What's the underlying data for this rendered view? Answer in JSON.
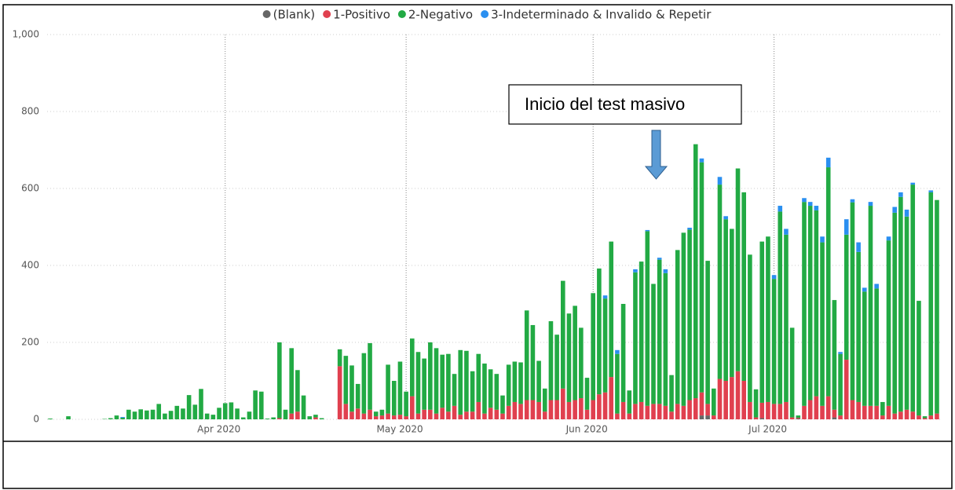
{
  "chart_data": {
    "type": "stacked_bar",
    "annotation": "Inicio del test masivo",
    "categories": [
      null,
      null,
      null,
      null,
      null,
      null,
      null,
      null,
      null,
      null,
      null,
      null,
      null,
      null,
      null,
      null,
      null,
      null,
      null,
      null,
      null,
      null,
      null,
      null,
      null,
      null,
      null,
      null,
      null,
      "Apr 2020",
      null,
      null,
      null,
      null,
      null,
      null,
      null,
      null,
      null,
      null,
      null,
      null,
      null,
      null,
      null,
      null,
      null,
      null,
      null,
      null,
      null,
      null,
      null,
      null,
      null,
      null,
      null,
      null,
      null,
      "May 2020",
      null,
      null,
      null,
      null,
      null,
      null,
      null,
      null,
      null,
      null,
      null,
      null,
      null,
      null,
      null,
      null,
      null,
      null,
      null,
      null,
      null,
      null,
      null,
      null,
      null,
      null,
      null,
      null,
      null,
      null,
      "Jun 2020",
      null,
      null,
      null,
      null,
      null,
      null,
      null,
      null,
      null,
      null,
      null,
      null,
      null,
      null,
      null,
      null,
      null,
      null,
      null,
      null,
      null,
      null,
      null,
      null,
      null,
      null,
      null,
      null,
      null,
      "Jul 2020",
      null,
      null,
      null,
      null,
      null,
      null,
      null,
      null,
      null,
      null,
      null,
      null,
      null,
      null,
      null,
      null,
      null,
      null,
      null,
      null,
      null,
      null,
      null,
      null,
      null,
      null,
      null
    ],
    "series": [
      {
        "name": "(Blank)",
        "color": "#666666",
        "values": [
          0,
          0,
          0,
          0,
          0,
          0,
          0,
          0,
          0,
          0,
          0,
          0,
          0,
          0,
          0,
          0,
          0,
          0,
          0,
          0,
          0,
          0,
          0,
          0,
          0,
          0,
          0,
          0,
          0,
          0,
          0,
          0,
          0,
          0,
          0,
          0,
          0,
          0,
          0,
          0,
          0,
          0,
          0,
          0,
          0,
          0,
          0,
          0,
          0,
          0,
          0,
          0,
          0,
          0,
          0,
          0,
          0,
          0,
          0,
          0,
          0,
          0,
          0,
          0,
          0,
          0,
          0,
          0,
          0,
          0,
          0,
          0,
          0,
          0,
          0,
          0,
          0,
          0,
          0,
          0,
          0,
          0,
          0,
          0,
          0,
          0,
          0,
          0,
          0,
          0,
          0,
          0,
          0,
          0,
          0,
          0,
          0,
          0,
          0,
          0,
          0,
          0,
          0,
          0,
          0,
          0,
          0,
          0,
          10,
          10,
          0,
          0,
          0,
          0,
          0,
          0,
          0,
          0,
          3,
          0,
          0,
          0,
          0,
          0,
          2,
          0,
          0,
          0,
          0,
          0,
          5,
          0,
          0,
          0,
          0,
          0,
          0,
          0,
          0,
          0,
          0,
          0,
          0,
          0,
          0,
          0,
          0,
          0
        ]
      },
      {
        "name": "1-Positivo",
        "color": "#e0404f",
        "values": [
          0,
          0,
          0,
          0,
          0,
          0,
          0,
          0,
          0,
          0,
          0,
          0,
          0,
          0,
          0,
          0,
          0,
          0,
          0,
          0,
          0,
          0,
          0,
          0,
          0,
          0,
          0,
          0,
          0,
          0,
          0,
          0,
          0,
          0,
          0,
          0,
          0,
          0,
          3,
          0,
          15,
          20,
          0,
          0,
          5,
          0,
          0,
          0,
          138,
          40,
          20,
          28,
          15,
          25,
          8,
          10,
          15,
          10,
          12,
          8,
          60,
          15,
          25,
          25,
          15,
          30,
          20,
          35,
          12,
          20,
          20,
          45,
          15,
          30,
          25,
          15,
          35,
          45,
          40,
          50,
          50,
          45,
          20,
          50,
          50,
          80,
          45,
          50,
          55,
          25,
          50,
          65,
          70,
          110,
          15,
          45,
          15,
          40,
          45,
          35,
          40,
          40,
          35,
          20,
          40,
          35,
          50,
          55,
          60,
          30,
          10,
          105,
          100,
          110,
          125,
          100,
          45,
          5,
          40,
          45,
          40,
          40,
          45,
          5,
          2,
          35,
          50,
          60,
          35,
          60,
          20,
          10,
          155,
          50,
          45,
          35,
          35,
          35,
          10,
          35,
          15,
          20,
          25,
          20,
          10,
          3,
          10,
          15
        ]
      },
      {
        "name": "2-Negativo",
        "color": "#22aa44",
        "values": [
          2,
          0,
          0,
          8,
          0,
          0,
          0,
          0,
          0,
          1,
          3,
          10,
          4,
          25,
          20,
          26,
          23,
          25,
          40,
          15,
          22,
          35,
          28,
          63,
          38,
          79,
          15,
          12,
          30,
          42,
          44,
          28,
          5,
          20,
          75,
          72,
          2,
          5,
          197,
          25,
          170,
          108,
          62,
          8,
          7,
          3,
          0,
          0,
          44,
          125,
          120,
          64,
          157,
          173,
          12,
          15,
          127,
          90,
          138,
          64,
          150,
          160,
          133,
          175,
          170,
          138,
          150,
          83,
          168,
          158,
          105,
          125,
          130,
          100,
          93,
          47,
          107,
          105,
          108,
          233,
          195,
          107,
          60,
          205,
          170,
          280,
          230,
          245,
          183,
          83,
          278,
          327,
          244,
          352,
          155,
          255,
          60,
          342,
          365,
          454,
          312,
          375,
          345,
          95,
          400,
          450,
          443,
          660,
          598,
          372,
          70,
          505,
          420,
          385,
          527,
          490,
          383,
          73,
          419,
          430,
          325,
          500,
          435,
          233,
          6,
          530,
          505,
          483,
          425,
          595,
          285,
          160,
          325,
          514,
          390,
          297,
          520,
          305,
          35,
          430,
          522,
          558,
          502,
          590,
          298,
          5,
          580,
          555
        ]
      },
      {
        "name": "3-Indeterminado & Invalido & Repetir",
        "color": "#2a8ff0",
        "values": [
          0,
          0,
          0,
          0,
          0,
          0,
          0,
          0,
          0,
          0,
          0,
          0,
          2,
          0,
          0,
          0,
          0,
          0,
          0,
          0,
          0,
          0,
          0,
          0,
          0,
          0,
          0,
          0,
          0,
          0,
          0,
          0,
          0,
          0,
          0,
          0,
          0,
          0,
          0,
          0,
          0,
          0,
          0,
          0,
          0,
          0,
          0,
          0,
          0,
          0,
          0,
          0,
          0,
          0,
          0,
          0,
          0,
          0,
          0,
          0,
          0,
          0,
          0,
          0,
          0,
          0,
          0,
          0,
          0,
          0,
          0,
          0,
          0,
          0,
          0,
          0,
          0,
          0,
          0,
          0,
          0,
          0,
          0,
          0,
          0,
          0,
          0,
          0,
          0,
          0,
          0,
          0,
          8,
          0,
          10,
          0,
          0,
          8,
          0,
          3,
          0,
          5,
          10,
          0,
          0,
          0,
          5,
          0,
          10,
          0,
          0,
          20,
          8,
          0,
          0,
          0,
          0,
          0,
          0,
          0,
          10,
          15,
          15,
          0,
          0,
          10,
          10,
          12,
          15,
          25,
          0,
          5,
          40,
          8,
          25,
          10,
          10,
          12,
          0,
          10,
          15,
          12,
          18,
          5,
          0,
          0,
          5,
          0
        ]
      }
    ],
    "ylim": [
      0,
      1000
    ],
    "yticks": [
      0,
      200,
      400,
      600,
      800,
      {
        "value": 1000,
        "label": "1,000"
      }
    ],
    "grid": true
  }
}
